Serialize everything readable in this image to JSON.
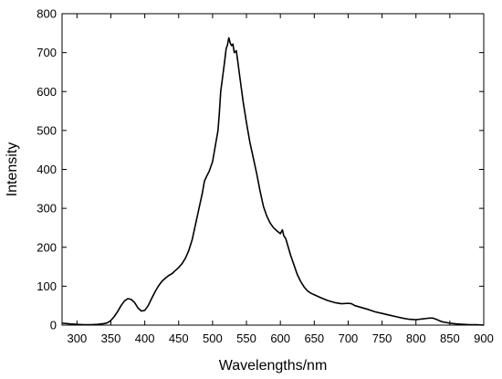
{
  "chart_data": {
    "type": "line",
    "title": "",
    "xlabel": "Wavelengths/nm",
    "ylabel": "Intensity",
    "xlim": [
      278,
      900
    ],
    "ylim": [
      0,
      800
    ],
    "xticks": [
      300,
      350,
      400,
      450,
      500,
      550,
      600,
      650,
      700,
      750,
      800,
      850,
      900
    ],
    "yticks": [
      0,
      100,
      200,
      300,
      400,
      500,
      600,
      700,
      800
    ],
    "xtick_labels": [
      "300",
      "350",
      "400",
      "450",
      "500",
      "550",
      "600",
      "650",
      "700",
      "750",
      "800",
      "850",
      "900"
    ],
    "ytick_labels": [
      "0",
      "100",
      "200",
      "300",
      "400",
      "500",
      "600",
      "700",
      "800"
    ],
    "grid": false,
    "legend": "none",
    "line_color": "#000000",
    "series": [
      {
        "x": [
          278,
          285,
          290,
          300,
          310,
          320,
          330,
          340,
          345,
          350,
          355,
          360,
          365,
          370,
          375,
          380,
          385,
          390,
          395,
          400,
          405,
          410,
          415,
          420,
          425,
          430,
          435,
          440,
          445,
          450,
          455,
          460,
          465,
          470,
          475,
          480,
          485,
          488,
          492,
          495,
          500,
          505,
          508,
          510,
          512,
          515,
          518,
          520,
          522,
          524,
          526,
          528,
          530,
          532,
          535,
          537,
          540,
          545,
          550,
          555,
          560,
          565,
          570,
          575,
          580,
          585,
          590,
          595,
          600,
          603,
          605,
          608,
          610,
          615,
          620,
          625,
          630,
          635,
          640,
          645,
          650,
          660,
          670,
          680,
          690,
          700,
          705,
          710,
          720,
          730,
          740,
          750,
          760,
          770,
          780,
          790,
          800,
          805,
          810,
          815,
          820,
          825,
          830,
          835,
          840,
          850,
          860,
          870,
          880,
          890,
          900
        ],
        "y": [
          5,
          4,
          3,
          2,
          1,
          1,
          2,
          4,
          6,
          12,
          22,
          35,
          50,
          62,
          68,
          66,
          58,
          44,
          36,
          38,
          50,
          68,
          85,
          100,
          112,
          120,
          127,
          132,
          140,
          148,
          158,
          172,
          192,
          220,
          260,
          300,
          340,
          370,
          385,
          395,
          420,
          470,
          500,
          545,
          600,
          640,
          680,
          710,
          720,
          738,
          725,
          718,
          722,
          700,
          705,
          680,
          640,
          575,
          520,
          470,
          430,
          390,
          345,
          305,
          280,
          262,
          250,
          242,
          235,
          245,
          230,
          222,
          210,
          180,
          155,
          130,
          112,
          98,
          88,
          82,
          78,
          70,
          63,
          58,
          55,
          56,
          55,
          50,
          45,
          40,
          34,
          30,
          26,
          22,
          18,
          15,
          14,
          15,
          16,
          17,
          18,
          18,
          15,
          11,
          8,
          5,
          3,
          2,
          1,
          1,
          0
        ]
      }
    ]
  }
}
